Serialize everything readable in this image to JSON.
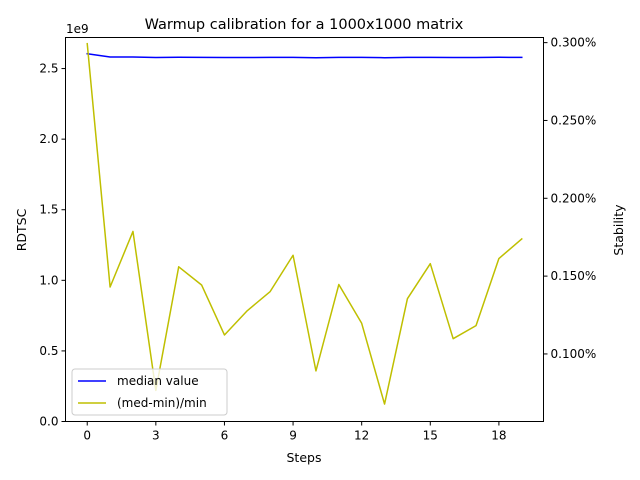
{
  "chart_data": {
    "type": "line",
    "title": "Warmup calibration for a 1000x1000 matrix",
    "xlabel": "Steps",
    "ylabel_left": "RDTSC",
    "ylabel_right": "Stability",
    "left_axis_offset_text": "1e9",
    "xlim": [
      -0.95,
      19.95
    ],
    "ylim_left": [
      0,
      2.72
    ],
    "ylim_right": [
      0.0566,
      0.3033
    ],
    "x_ticks": [
      0,
      3,
      6,
      9,
      12,
      15,
      18
    ],
    "x_tick_labels": [
      "0",
      "3",
      "6",
      "9",
      "12",
      "15",
      "18"
    ],
    "left_ticks": [
      0.0,
      0.5,
      1.0,
      1.5,
      2.0,
      2.5
    ],
    "left_tick_labels": [
      "0.0",
      "0.5",
      "1.0",
      "1.5",
      "2.0",
      "2.5"
    ],
    "right_ticks": [
      0.1,
      0.15,
      0.2,
      0.25,
      0.3
    ],
    "right_tick_labels": [
      "0.100%",
      "0.150%",
      "0.200%",
      "0.250%",
      "0.300%"
    ],
    "legend_position": "lower-left",
    "series": [
      {
        "name": "median value",
        "axis": "left",
        "color": "#0000ff",
        "x": [
          0,
          1,
          2,
          3,
          4,
          5,
          6,
          7,
          8,
          9,
          10,
          11,
          12,
          13,
          14,
          15,
          16,
          17,
          18,
          19
        ],
        "values": [
          2.605,
          2.582,
          2.582,
          2.578,
          2.58,
          2.579,
          2.578,
          2.578,
          2.579,
          2.579,
          2.577,
          2.579,
          2.579,
          2.577,
          2.579,
          2.579,
          2.578,
          2.578,
          2.58,
          2.579
        ]
      },
      {
        "name": "(med-min)/min",
        "axis": "right",
        "color": "#bfbf00",
        "x": [
          0,
          1,
          2,
          3,
          4,
          5,
          6,
          7,
          8,
          9,
          10,
          11,
          12,
          13,
          14,
          15,
          16,
          17,
          18,
          19
        ],
        "values": [
          0.2993,
          0.143,
          0.1787,
          0.0766,
          0.156,
          0.1443,
          0.1122,
          0.1278,
          0.1401,
          0.1634,
          0.0891,
          0.1446,
          0.1197,
          0.0678,
          0.1355,
          0.158,
          0.1098,
          0.1182,
          0.1613,
          0.1739
        ]
      }
    ]
  }
}
